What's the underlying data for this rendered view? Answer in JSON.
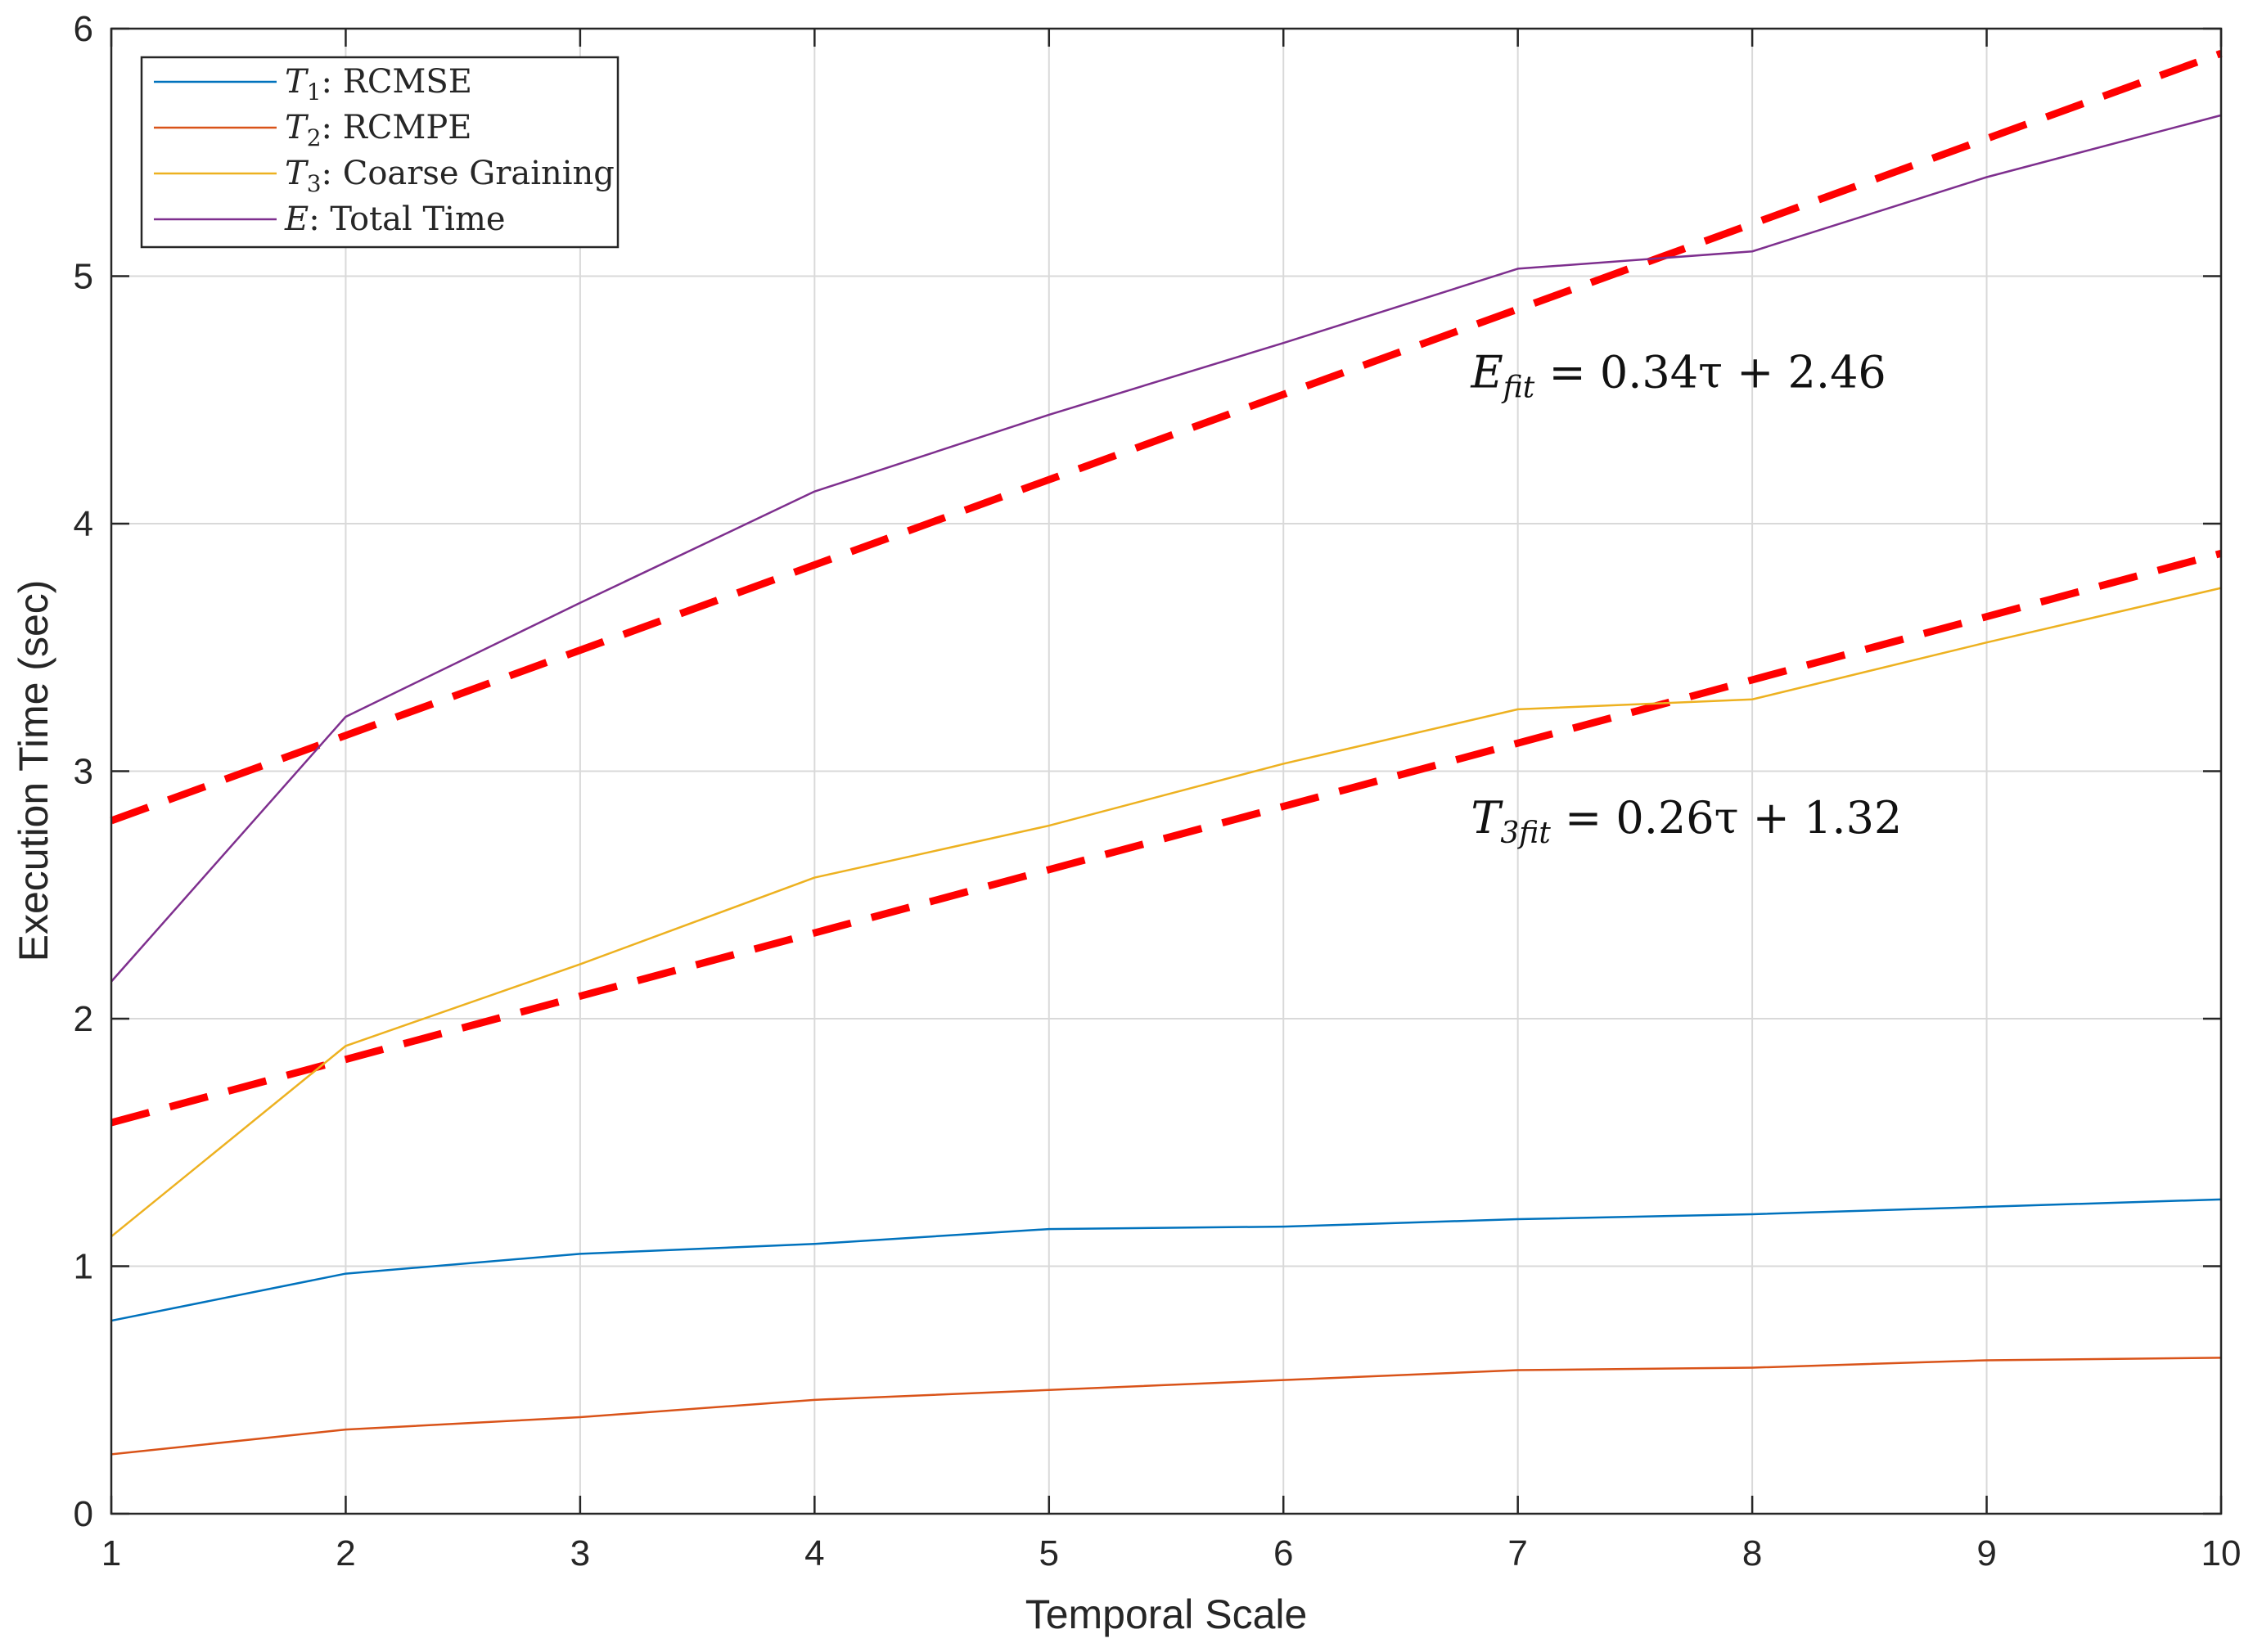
{
  "chart_data": {
    "type": "line",
    "title": "",
    "xlabel": "Temporal Scale",
    "ylabel": "Execution Time (sec)",
    "xlim": [
      1,
      10
    ],
    "ylim": [
      0,
      6
    ],
    "x_ticks": [
      "1",
      "2",
      "3",
      "4",
      "5",
      "6",
      "7",
      "8",
      "9",
      "10"
    ],
    "y_ticks": [
      "0",
      "1",
      "2",
      "3",
      "4",
      "5",
      "6"
    ],
    "grid": true,
    "legend_position": "top-left",
    "x": [
      1,
      2,
      3,
      4,
      5,
      6,
      7,
      8,
      9,
      10
    ],
    "series": [
      {
        "name": "T1: RCMSE",
        "legend_symbol": "T",
        "legend_sub": "1",
        "legend_rest": ": RCMSE",
        "color": "#0072BD",
        "style": "solid",
        "values": [
          0.78,
          0.97,
          1.05,
          1.09,
          1.15,
          1.16,
          1.19,
          1.21,
          1.24,
          1.27
        ]
      },
      {
        "name": "T2: RCMPE",
        "legend_symbol": "T",
        "legend_sub": "2",
        "legend_rest": ": RCMPE",
        "color": "#D95319",
        "style": "solid",
        "values": [
          0.24,
          0.34,
          0.39,
          0.46,
          0.5,
          0.54,
          0.58,
          0.59,
          0.62,
          0.63
        ]
      },
      {
        "name": "T3: Coarse Graining",
        "legend_symbol": "T",
        "legend_sub": "3",
        "legend_rest": ": Coarse Graining",
        "color": "#EDB120",
        "style": "solid",
        "values": [
          1.12,
          1.89,
          2.22,
          2.57,
          2.78,
          3.03,
          3.25,
          3.29,
          3.52,
          3.74
        ]
      },
      {
        "name": "E: Total Time",
        "legend_symbol": "E",
        "legend_sub": "",
        "legend_rest": ": Total Time",
        "color": "#7E2F8E",
        "style": "solid",
        "values": [
          2.15,
          3.22,
          3.68,
          4.13,
          4.44,
          4.73,
          5.03,
          5.1,
          5.4,
          5.65
        ]
      }
    ],
    "fits": [
      {
        "name": "E_fit",
        "color": "#FF0000",
        "style": "dashed",
        "x_range": [
          1,
          10
        ],
        "values": [
          2.8,
          5.9
        ],
        "label_symbol": "E",
        "label_sub": "fit",
        "label_rest": " = 0.34τ + 2.46",
        "label_anchor": [
          6.8,
          4.55
        ]
      },
      {
        "name": "T3_fit",
        "color": "#FF0000",
        "style": "dashed",
        "x_range": [
          1,
          10
        ],
        "values": [
          1.58,
          3.88
        ],
        "label_symbol": "T",
        "label_sub": "3fit",
        "label_rest": " = 0.26τ + 1.32",
        "label_anchor": [
          6.8,
          2.75
        ]
      }
    ]
  }
}
